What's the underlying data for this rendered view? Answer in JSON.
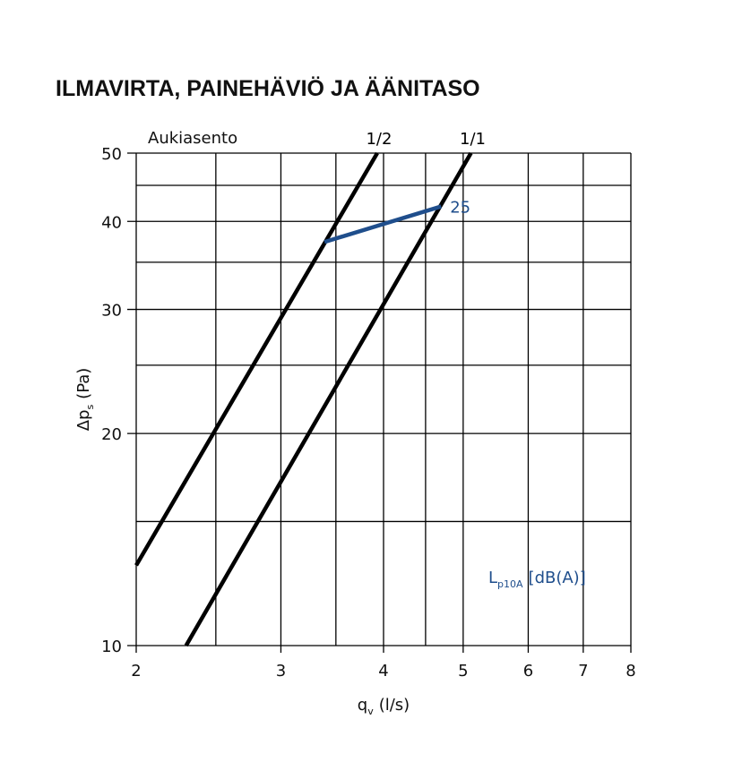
{
  "chart_data": {
    "type": "line",
    "title": "ILMAVIRTA, PAINEHÄVIÖ JA ÄÄNITASO",
    "annotation": "Aukiasento",
    "x_label": {
      "main": "q",
      "sub": "v",
      "unit": "(l/s)"
    },
    "y_label": {
      "main": "Δp",
      "sub": "s",
      "unit": "(Pa)"
    },
    "legend_note": {
      "main": "L",
      "sub": "p10A",
      "unit": "[dB(A)]"
    },
    "xlim": [
      2,
      8
    ],
    "ylim": [
      10,
      50
    ],
    "log_x": true,
    "log_y": true,
    "grid": true,
    "xticks": [
      2,
      3,
      4,
      5,
      6,
      7,
      8
    ],
    "xminor": [
      2.5,
      3.5,
      4.5
    ],
    "yticks": [
      10,
      20,
      30,
      40,
      50
    ],
    "yminor": [
      15,
      25,
      35,
      45
    ],
    "series": [
      {
        "name": "1/2",
        "color": "#000000",
        "x": [
          2,
          3.93
        ],
        "values": [
          13,
          50
        ]
      },
      {
        "name": "1/1",
        "color": "#000000",
        "x": [
          2.3,
          5.11
        ],
        "values": [
          10,
          50
        ]
      },
      {
        "name": "25",
        "color": "#1f4e8c",
        "x": [
          3.39,
          4.7
        ],
        "values": [
          37.4,
          42
        ]
      }
    ]
  }
}
